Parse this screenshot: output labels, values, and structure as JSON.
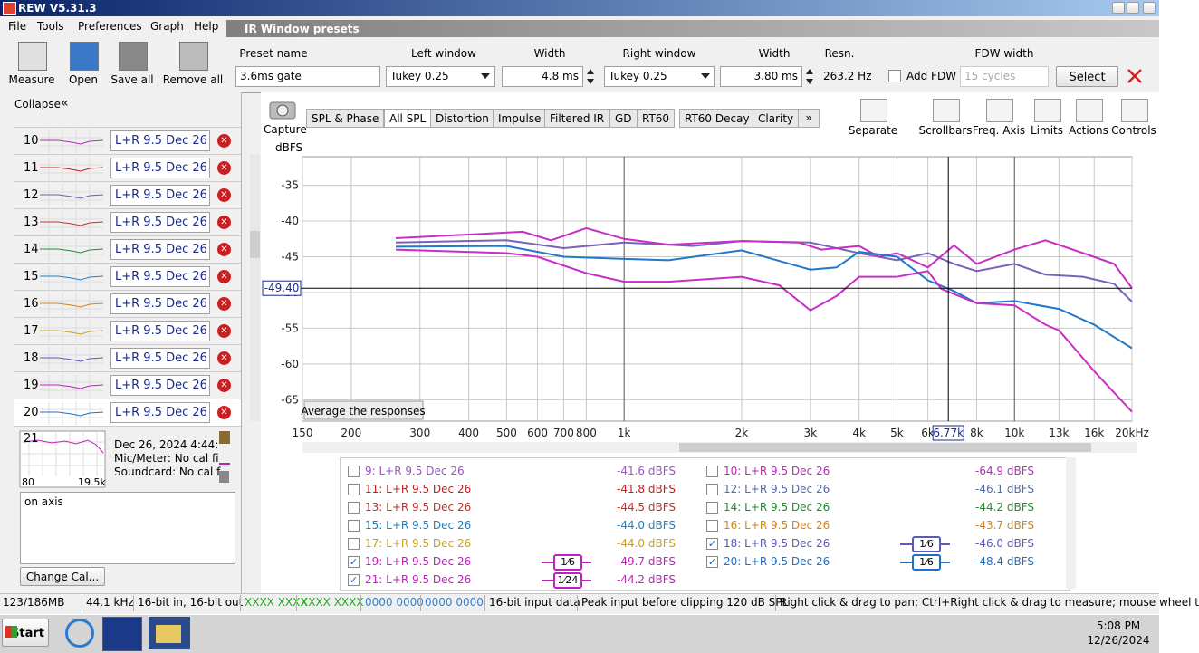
{
  "title_bar": {
    "title": "REW V5.31.3"
  },
  "menu": [
    "File",
    "Tools",
    "Preferences",
    "Graph",
    "Help"
  ],
  "toolbar": [
    "Measure",
    "Open",
    "Save all",
    "Remove all"
  ],
  "ir_window": {
    "title": "IR Window presets",
    "preset_name": {
      "label": "Preset name",
      "value": "3.6ms gate"
    },
    "left_window": {
      "label": "Left window",
      "value": "Tukey 0.25"
    },
    "left_width": {
      "label": "Width",
      "value": "4.8 ms"
    },
    "right_window": {
      "label": "Right window",
      "value": "Tukey 0.25"
    },
    "right_width": {
      "label": "Width",
      "value": "3.80 ms"
    },
    "resolution": {
      "label": "Resn.",
      "value": "263.2 Hz"
    },
    "add_fdw": "Add FDW",
    "fdw_width": {
      "label": "FDW width",
      "value": "15 cycles"
    },
    "select": "Select"
  },
  "sidebar": {
    "collapse": "Collapse",
    "measurements": [
      {
        "number": "10",
        "name": "L+R 9.5 Dec 26"
      },
      {
        "number": "11",
        "name": "L+R 9.5 Dec 26"
      },
      {
        "number": "12",
        "name": "L+R 9.5 Dec 26"
      },
      {
        "number": "13",
        "name": "L+R 9.5 Dec 26"
      },
      {
        "number": "14",
        "name": "L+R 9.5 Dec 26"
      },
      {
        "number": "15",
        "name": "L+R 9.5 Dec 26"
      },
      {
        "number": "16",
        "name": "L+R 9.5 Dec 26"
      },
      {
        "number": "17",
        "name": "L+R 9.5 Dec 26"
      },
      {
        "number": "18",
        "name": "L+R 9.5 Dec 26"
      },
      {
        "number": "19",
        "name": "L+R 9.5 Dec 26"
      },
      {
        "number": "20",
        "name": "L+R 9.5 Dec 26"
      }
    ],
    "selected": {
      "number": "21",
      "axis_low": "80",
      "axis_high": "19.5k",
      "date": "Dec 26, 2024 4:44:",
      "mic": "Mic/Meter: No cal fi",
      "soundcard": "Soundcard: No cal f",
      "notes": "on axis",
      "change_cal": "Change Cal..."
    }
  },
  "graph_toolbar": {
    "capture": "Capture",
    "tabs": [
      "SPL & Phase",
      "All SPL",
      "Distortion",
      "Impulse",
      "Filtered IR",
      "GD",
      "RT60",
      "RT60 Decay",
      "Clarity"
    ],
    "active_tab": 1,
    "tools": [
      "Separate",
      "Scrollbars",
      "Freq. Axis",
      "Limits",
      "Actions",
      "Controls"
    ]
  },
  "chart_data": {
    "type": "line",
    "y_label": "dBFS",
    "log_x": true,
    "grid": true,
    "xlim": [
      150,
      20000
    ],
    "ylim": [
      -68,
      -31
    ],
    "xticks": [
      150,
      200,
      300,
      400,
      500,
      600,
      700,
      800,
      {
        "value": 1000,
        "label": "1k"
      },
      {
        "value": 2000,
        "label": "2k"
      },
      {
        "value": 3000,
        "label": "3k"
      },
      {
        "value": 4000,
        "label": "4k"
      },
      {
        "value": 5000,
        "label": "5k"
      },
      {
        "value": 6000,
        "label": "6k"
      },
      {
        "value": 8000,
        "label": "8k"
      },
      {
        "value": 10000,
        "label": "10k"
      },
      {
        "value": 13000,
        "label": "13k"
      },
      {
        "value": 16000,
        "label": "16k"
      },
      {
        "value": 20000,
        "label": "20kHz"
      }
    ],
    "yticks": [
      -35,
      -40,
      -45,
      -50,
      -55,
      -60,
      -65
    ],
    "cursor": {
      "x": {
        "value": 6770,
        "label": "6.77k"
      },
      "y": {
        "value": -49.4,
        "label": "-49.40"
      }
    },
    "button": "Average the responses",
    "series": [
      {
        "color": "#7a62b8",
        "x": [
          260,
          500,
          700,
          1000,
          1500,
          2000,
          3000,
          4000,
          5000,
          6000,
          7000,
          8000,
          10000,
          12000,
          15000,
          18000,
          20000
        ],
        "values": [
          -43.0,
          -42.7,
          -43.8,
          -43.0,
          -43.5,
          -42.8,
          -43.0,
          -44.5,
          -45.5,
          -44.5,
          -46.0,
          -47.0,
          -46.0,
          -47.5,
          -47.8,
          -48.8,
          -51.3
        ]
      },
      {
        "color": "#c62ec6",
        "x": [
          260,
          400,
          550,
          650,
          800,
          1000,
          1300,
          2000,
          2800,
          3200,
          4000,
          4500,
          5000,
          6000,
          7000,
          8000,
          10000,
          12000,
          15000,
          18000,
          20000
        ],
        "values": [
          -42.4,
          -41.9,
          -41.5,
          -42.7,
          -41.0,
          -42.5,
          -43.3,
          -42.8,
          -43.0,
          -44.0,
          -43.5,
          -45.0,
          -44.5,
          -46.5,
          -43.4,
          -46.0,
          -44.0,
          -42.7,
          -44.5,
          -46.0,
          -49.4
        ]
      },
      {
        "color": "#1f78c8",
        "x": [
          260,
          500,
          700,
          1000,
          1300,
          2000,
          3000,
          3500,
          4000,
          5000,
          6000,
          7000,
          8000,
          10000,
          13000,
          16000,
          20000
        ],
        "values": [
          -43.6,
          -43.5,
          -45.0,
          -45.3,
          -45.5,
          -44.1,
          -46.8,
          -46.5,
          -44.3,
          -45.0,
          -48.3,
          -49.8,
          -51.5,
          -51.2,
          -52.3,
          -54.5,
          -57.8
        ]
      },
      {
        "color": "#c62ec6",
        "x": [
          260,
          500,
          600,
          800,
          1000,
          1300,
          2000,
          2500,
          3000,
          3500,
          4000,
          5000,
          6000,
          6500,
          8000,
          10000,
          12000,
          13000,
          16000,
          20000
        ],
        "values": [
          -44.0,
          -44.5,
          -45.0,
          -47.3,
          -48.5,
          -48.5,
          -47.8,
          -49.0,
          -52.5,
          -50.5,
          -47.8,
          -47.8,
          -47.0,
          -49.5,
          -51.5,
          -51.8,
          -54.5,
          -55.3,
          -61.0,
          -66.7
        ]
      }
    ]
  },
  "legend": {
    "entries": [
      {
        "name": "9: L+R 9.5 Dec 26",
        "color": "#9a55c4",
        "checked": false,
        "level": "-41.6 dBFS"
      },
      {
        "name": "10: L+R 9.5 Dec 26",
        "color": "#b02fb0",
        "checked": false,
        "level": "-64.9 dBFS"
      },
      {
        "name": "11: L+R 9.5 Dec 26",
        "color": "#c02020",
        "checked": false,
        "level": "-41.8 dBFS"
      },
      {
        "name": "12: L+R 9.5 Dec 26",
        "color": "#5a6aa8",
        "checked": false,
        "level": "-46.1 dBFS"
      },
      {
        "name": "13: L+R 9.5 Dec 26",
        "color": "#c0302a",
        "checked": false,
        "level": "-44.5 dBFS"
      },
      {
        "name": "14: L+R 9.5 Dec 26",
        "color": "#208a30",
        "checked": false,
        "level": "-44.2 dBFS"
      },
      {
        "name": "15: L+R 9.5 Dec 26",
        "color": "#2080c0",
        "checked": false,
        "level": "-44.0 dBFS"
      },
      {
        "name": "16: L+R 9.5 Dec 26",
        "color": "#d08418",
        "checked": false,
        "level": "-43.7 dBFS"
      },
      {
        "name": "17: L+R 9.5 Dec 26",
        "color": "#c8a020",
        "checked": false,
        "level": "-44.0 dBFS"
      },
      {
        "name": "18: L+R 9.5 Dec 26",
        "color": "#5a5ab8",
        "checked": true,
        "smoothing": "1⁄6",
        "level": "-46.0 dBFS"
      },
      {
        "name": "19: L+R 9.5 Dec 26",
        "color": "#c020c0",
        "checked": true,
        "smoothing": "1⁄6",
        "level": "-49.7 dBFS"
      },
      {
        "name": "20: L+R 9.5 Dec 26",
        "color": "#1f70c0",
        "checked": true,
        "smoothing": "1⁄6",
        "level": "-48.4 dBFS"
      },
      {
        "name": "21: L+R 9.5 Dec 26",
        "color": "#c020c0",
        "checked": true,
        "smoothing": "1⁄24",
        "level": "-44.2 dBFS"
      }
    ]
  },
  "status_bar": {
    "fields": [
      {
        "text": "123/186MB"
      },
      {
        "text": "44.1 kHz"
      },
      {
        "text": "16-bit in, 16-bit out"
      },
      {
        "text": "XXXX XXXX",
        "color": "#22aa22"
      },
      {
        "text": "XXXX XXXX",
        "color": "#22aa22"
      },
      {
        "text": "0000 0000",
        "color": "#3b7fc4"
      },
      {
        "text": "0000 0000",
        "color": "#3b7fc4"
      },
      {
        "text": "16-bit input data"
      },
      {
        "text": "Peak input before clipping 120 dB SPL"
      },
      {
        "text": "Right click & drag to pan; Ctrl+Right click & drag to measure; mouse wheel t"
      }
    ]
  },
  "taskbar": {
    "start": "Start",
    "time": "5:08 PM",
    "date": "12/26/2024"
  }
}
